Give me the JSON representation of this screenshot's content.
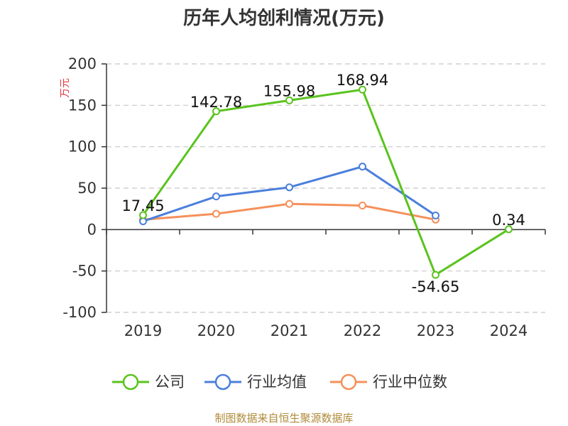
{
  "chart_data": {
    "type": "line",
    "title": "历年人均创利情况(万元)",
    "ylabel": "万元",
    "categories": [
      "2019",
      "2020",
      "2021",
      "2022",
      "2023",
      "2024"
    ],
    "yticks": [
      200,
      150,
      100,
      50,
      0,
      -50,
      -100
    ],
    "ylim": [
      -100,
      200
    ],
    "grid": true,
    "legend_position": "bottom",
    "series": [
      {
        "name": "公司",
        "color": "#5ac31e",
        "values": [
          17.45,
          142.78,
          155.98,
          168.94,
          -54.65,
          0.34
        ],
        "labels": [
          "17.45",
          "142.78",
          "155.98",
          "168.94",
          "-54.65",
          "0.34"
        ]
      },
      {
        "name": "行业均值",
        "color": "#4a7fdc",
        "values": [
          10,
          40,
          51,
          76,
          17,
          null
        ]
      },
      {
        "name": "行业中位数",
        "color": "#f5905a",
        "values": [
          12,
          19,
          31,
          29,
          12,
          null
        ]
      }
    ],
    "source": "制图数据来自恒生聚源数据库"
  }
}
